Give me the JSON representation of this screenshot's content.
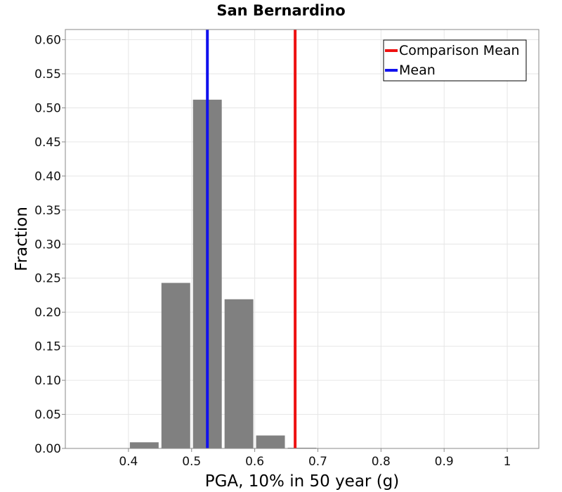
{
  "chart_data": {
    "type": "bar",
    "title": "San Bernardino",
    "xlabel": "PGA, 10% in 50 year (g)",
    "ylabel": "Fraction",
    "xlim": [
      0.3,
      1.05
    ],
    "ylim": [
      0,
      0.615
    ],
    "grid": true,
    "bin_width": 0.05,
    "bars": [
      {
        "x": 0.425,
        "value": 0.009
      },
      {
        "x": 0.475,
        "value": 0.243
      },
      {
        "x": 0.525,
        "value": 0.512
      },
      {
        "x": 0.575,
        "value": 0.219
      },
      {
        "x": 0.625,
        "value": 0.019
      },
      {
        "x": 0.675,
        "value": 0.001
      }
    ],
    "bar_color": "#808080",
    "xticks": [
      {
        "value": 0.4,
        "label": "0.4"
      },
      {
        "value": 0.5,
        "label": "0.5"
      },
      {
        "value": 0.6,
        "label": "0.6"
      },
      {
        "value": 0.7,
        "label": "0.7"
      },
      {
        "value": 0.8,
        "label": "0.8"
      },
      {
        "value": 0.9,
        "label": "0.9"
      },
      {
        "value": 1.0,
        "label": "1"
      }
    ],
    "yticks": [
      {
        "value": 0.0,
        "label": "0.00"
      },
      {
        "value": 0.05,
        "label": "0.05"
      },
      {
        "value": 0.1,
        "label": "0.10"
      },
      {
        "value": 0.15,
        "label": "0.15"
      },
      {
        "value": 0.2,
        "label": "0.20"
      },
      {
        "value": 0.25,
        "label": "0.25"
      },
      {
        "value": 0.3,
        "label": "0.30"
      },
      {
        "value": 0.35,
        "label": "0.35"
      },
      {
        "value": 0.4,
        "label": "0.40"
      },
      {
        "value": 0.45,
        "label": "0.45"
      },
      {
        "value": 0.5,
        "label": "0.50"
      },
      {
        "value": 0.55,
        "label": "0.55"
      },
      {
        "value": 0.6,
        "label": "0.60"
      }
    ],
    "vlines": [
      {
        "name": "Comparison Mean",
        "x": 0.664,
        "color": "#ee1111"
      },
      {
        "name": "Mean",
        "x": 0.525,
        "color": "#1111ee"
      }
    ],
    "legend": {
      "placement": "top-right",
      "entries": [
        {
          "label": "Comparison Mean",
          "color": "#ee1111"
        },
        {
          "label": "Mean",
          "color": "#1111ee"
        }
      ]
    }
  }
}
